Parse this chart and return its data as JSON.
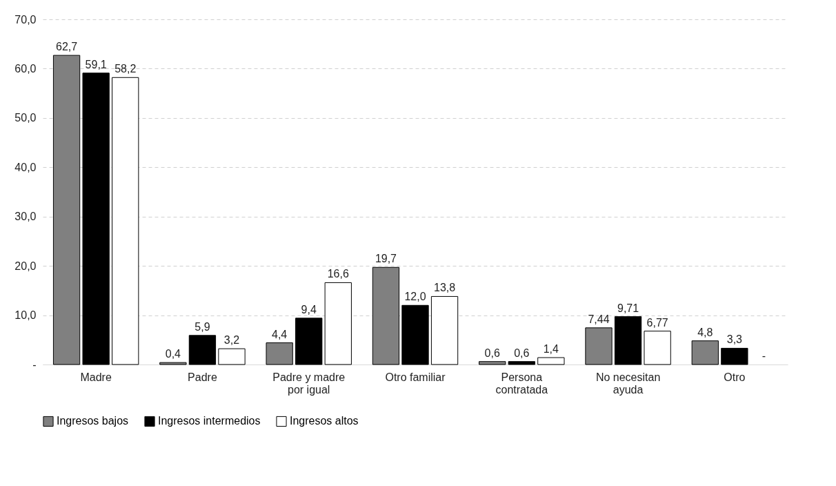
{
  "chart_data": {
    "type": "bar",
    "categories": [
      "Madre",
      "Padre",
      "Padre y madre por igual",
      "Otro familiar",
      "Persona contratada",
      "No necesitan ayuda",
      "Otro"
    ],
    "series": [
      {
        "name": "Ingresos bajos",
        "color": "#808080",
        "values": [
          62.7,
          0.4,
          4.4,
          19.7,
          0.6,
          7.44,
          4.8
        ],
        "value_labels": [
          "62,7",
          "0,4",
          "4,4",
          "19,7",
          "0,6",
          "7,44",
          "4,8"
        ]
      },
      {
        "name": "Ingresos intermedios",
        "color": "#000000",
        "values": [
          59.1,
          5.9,
          9.4,
          12.0,
          0.6,
          9.71,
          3.3
        ],
        "value_labels": [
          "59,1",
          "5,9",
          "9,4",
          "12,0",
          "0,6",
          "9,71",
          "3,3"
        ]
      },
      {
        "name": "Ingresos altos",
        "color": "#ffffff",
        "values": [
          58.2,
          3.2,
          16.6,
          13.8,
          1.4,
          6.77,
          null
        ],
        "value_labels": [
          "58,2",
          "3,2",
          "16,6",
          "13,8",
          "1,4",
          "6,77",
          "-"
        ]
      }
    ],
    "ylim": [
      0,
      70
    ],
    "yticks": [
      {
        "value": 0,
        "label": "-"
      },
      {
        "value": 10,
        "label": "10,0"
      },
      {
        "value": 20,
        "label": "20,0"
      },
      {
        "value": 30,
        "label": "30,0"
      },
      {
        "value": 40,
        "label": "40,0"
      },
      {
        "value": 50,
        "label": "50,0"
      },
      {
        "value": 60,
        "label": "60,0"
      },
      {
        "value": 70,
        "label": "70,0"
      }
    ],
    "grid": "y",
    "legend": "bottom"
  }
}
